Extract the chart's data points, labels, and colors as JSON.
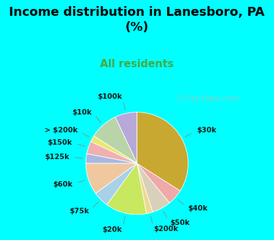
{
  "title": "Income distribution in Lanesboro, PA\n(%)",
  "subtitle": "All residents",
  "background_color": "#00FFFF",
  "chart_bg_color_top": "#d8ede0",
  "chart_bg_color_bottom": "#c8e8d8",
  "watermark": "ⓘ City-Data.com",
  "slices": [
    {
      "label": "$100k",
      "value": 7,
      "color": "#b8a8d8"
    },
    {
      "label": "$10k",
      "value": 9,
      "color": "#b8d4a8"
    },
    {
      "label": "> $200k",
      "value": 2,
      "color": "#e8e870"
    },
    {
      "label": "$150k",
      "value": 4,
      "color": "#f0b0b0"
    },
    {
      "label": "$125k",
      "value": 3,
      "color": "#a8b8e0"
    },
    {
      "label": "$60k",
      "value": 10,
      "color": "#f0c8a0"
    },
    {
      "label": "$75k",
      "value": 5,
      "color": "#a8d0e8"
    },
    {
      "label": "$20k",
      "value": 13,
      "color": "#c8e860"
    },
    {
      "label": "$200k",
      "value": 2,
      "color": "#f0d890"
    },
    {
      "label": "$50k",
      "value": 6,
      "color": "#d8d0b8"
    },
    {
      "label": "$40k",
      "value": 5,
      "color": "#f0a8a8"
    },
    {
      "label": "$30k",
      "value": 34,
      "color": "#c8a830"
    }
  ],
  "title_fontsize": 13,
  "subtitle_fontsize": 11,
  "subtitle_color": "#44aa44",
  "label_fontsize": 7.5,
  "watermark_color": "#b0c0b8",
  "watermark_fontsize": 8
}
